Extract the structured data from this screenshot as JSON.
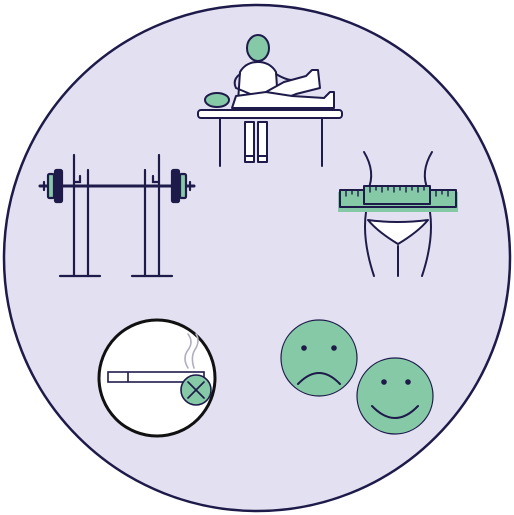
{
  "illustration": {
    "icons": [
      "physiotherapy-icon",
      "barbell-rack-icon",
      "waist-measuring-tape-icon",
      "no-smoking-icon",
      "sad-face-icon",
      "happy-face-icon"
    ]
  },
  "colors": {
    "background": "#e3e1f1",
    "outline": "#1e1b4b",
    "accent": "#86c9a6",
    "white": "#ffffff",
    "black": "#111111",
    "smoke": "#b0aec0"
  }
}
